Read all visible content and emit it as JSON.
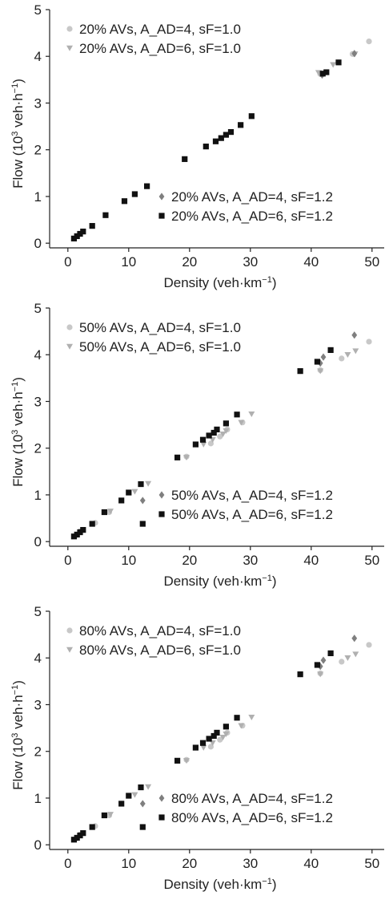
{
  "colors": {
    "c_ad4_sf10": "#c8c8c8",
    "c_ad6_sf10": "#b0b0b0",
    "c_ad4_sf12": "#7f7f7f",
    "c_ad6_sf12": "#111111",
    "axis": "#222222"
  },
  "chart_data": [
    {
      "type": "scatter",
      "xlabel": "Density (veh·km",
      "xlabel_sup": "−1",
      "xlabel_end": ")",
      "ylabel": "Flow (10",
      "ylabel_sup1": "3",
      "ylabel_mid": " veh·h",
      "ylabel_sup2": "−1",
      "ylabel_end": ")",
      "xlim": [
        -3,
        52
      ],
      "ylim": [
        -0.1,
        5
      ],
      "xticks": [
        "0",
        "10",
        "20",
        "30",
        "40",
        "50"
      ],
      "yticks": [
        "0",
        "1",
        "2",
        "3",
        "4",
        "5"
      ],
      "legend_top": "top-left",
      "legend_bottom": "bottom-right",
      "series": [
        {
          "name": "20% AVs, A_AD=4, sF=1.0",
          "marker": "circle",
          "color": "#c8c8c8",
          "points": [
            [
              41.5,
              3.62
            ],
            [
              46.8,
              4.05
            ],
            [
              49.5,
              4.32
            ]
          ]
        },
        {
          "name": "20% AVs, A_AD=6, sF=1.0",
          "marker": "triangle-down",
          "color": "#b0b0b0",
          "points": [
            [
              41.2,
              3.65
            ],
            [
              43.6,
              3.82
            ],
            [
              47.2,
              4.05
            ]
          ]
        },
        {
          "name": "20% AVs, A_AD=4, sF=1.2",
          "marker": "diamond",
          "color": "#7f7f7f",
          "points": [
            [
              41.8,
              3.6
            ],
            [
              47.1,
              4.06
            ]
          ]
        },
        {
          "name": "20% AVs, A_AD=6, sF=1.2",
          "marker": "square",
          "color": "#111111",
          "points": [
            [
              1.0,
              0.1
            ],
            [
              1.5,
              0.15
            ],
            [
              2.0,
              0.2
            ],
            [
              2.5,
              0.25
            ],
            [
              4.0,
              0.37
            ],
            [
              6.2,
              0.6
            ],
            [
              9.3,
              0.9
            ],
            [
              11.0,
              1.05
            ],
            [
              13.0,
              1.22
            ],
            [
              19.2,
              1.8
            ],
            [
              22.7,
              2.07
            ],
            [
              24.3,
              2.18
            ],
            [
              25.2,
              2.25
            ],
            [
              26.0,
              2.32
            ],
            [
              26.8,
              2.38
            ],
            [
              28.4,
              2.53
            ],
            [
              30.2,
              2.72
            ],
            [
              41.9,
              3.63
            ],
            [
              42.5,
              3.66
            ],
            [
              44.5,
              3.87
            ]
          ]
        }
      ]
    },
    {
      "type": "scatter",
      "xlabel": "Density (veh·km",
      "xlabel_sup": "−1",
      "xlabel_end": ")",
      "ylabel": "Flow (10",
      "ylabel_sup1": "3",
      "ylabel_mid": " veh·h",
      "ylabel_sup2": "−1",
      "ylabel_end": ")",
      "xlim": [
        -3,
        52
      ],
      "ylim": [
        -0.1,
        5
      ],
      "xticks": [
        "0",
        "10",
        "20",
        "30",
        "40",
        "50"
      ],
      "yticks": [
        "0",
        "1",
        "2",
        "3",
        "4",
        "5"
      ],
      "legend_top": "top-left",
      "legend_bottom": "bottom-right",
      "series": [
        {
          "name": "50% AVs, A_AD=4, sF=1.0",
          "marker": "circle",
          "color": "#c8c8c8",
          "points": [
            [
              1.2,
              0.12
            ],
            [
              4.5,
              0.4
            ],
            [
              6.8,
              0.63
            ],
            [
              19.5,
              1.82
            ],
            [
              23.5,
              2.1
            ],
            [
              25.0,
              2.25
            ],
            [
              26.2,
              2.4
            ],
            [
              28.7,
              2.55
            ],
            [
              38.2,
              3.65
            ],
            [
              41.5,
              3.67
            ],
            [
              45.0,
              3.92
            ],
            [
              49.5,
              4.28
            ]
          ]
        },
        {
          "name": "50% AVs, A_AD=6, sF=1.0",
          "marker": "triangle-down",
          "color": "#b0b0b0",
          "points": [
            [
              2.2,
              0.22
            ],
            [
              7.0,
              0.65
            ],
            [
              11.0,
              1.07
            ],
            [
              13.2,
              1.24
            ],
            [
              19.5,
              1.8
            ],
            [
              22.3,
              2.08
            ],
            [
              23.8,
              2.18
            ],
            [
              25.5,
              2.3
            ],
            [
              26.0,
              2.37
            ],
            [
              28.5,
              2.55
            ],
            [
              30.2,
              2.73
            ],
            [
              41.5,
              3.65
            ],
            [
              46.0,
              4.0
            ],
            [
              47.3,
              4.08
            ]
          ]
        },
        {
          "name": "50% AVs, A_AD=4, sF=1.2",
          "marker": "diamond",
          "color": "#7f7f7f",
          "points": [
            [
              12.3,
              0.88
            ],
            [
              41.5,
              3.82
            ],
            [
              42.0,
              3.95
            ],
            [
              47.1,
              4.42
            ]
          ]
        },
        {
          "name": "50% AVs, A_AD=6, sF=1.2",
          "marker": "square",
          "color": "#111111",
          "points": [
            [
              1.0,
              0.11
            ],
            [
              1.5,
              0.15
            ],
            [
              2.0,
              0.2
            ],
            [
              2.5,
              0.25
            ],
            [
              4.0,
              0.38
            ],
            [
              6.0,
              0.63
            ],
            [
              8.8,
              0.88
            ],
            [
              10.0,
              1.05
            ],
            [
              12.0,
              1.23
            ],
            [
              12.3,
              0.38
            ],
            [
              18.0,
              1.8
            ],
            [
              21.0,
              2.08
            ],
            [
              22.2,
              2.18
            ],
            [
              23.2,
              2.27
            ],
            [
              24.0,
              2.33
            ],
            [
              24.5,
              2.4
            ],
            [
              26.0,
              2.53
            ],
            [
              27.8,
              2.72
            ],
            [
              38.2,
              3.65
            ],
            [
              41.0,
              3.85
            ],
            [
              43.2,
              4.1
            ]
          ]
        }
      ]
    },
    {
      "type": "scatter",
      "xlabel": "Density (veh·km",
      "xlabel_sup": "−1",
      "xlabel_end": ")",
      "ylabel": "Flow (10",
      "ylabel_sup1": "3",
      "ylabel_mid": " veh·h",
      "ylabel_sup2": "−1",
      "ylabel_end": ")",
      "xlim": [
        -3,
        52
      ],
      "ylim": [
        -0.1,
        5
      ],
      "xticks": [
        "0",
        "10",
        "20",
        "30",
        "40",
        "50"
      ],
      "yticks": [
        "0",
        "1",
        "2",
        "3",
        "4",
        "5"
      ],
      "legend_top": "top-left",
      "legend_bottom": "bottom-right",
      "series": [
        {
          "name": "80% AVs, A_AD=4, sF=1.0",
          "marker": "circle",
          "color": "#c8c8c8",
          "points": [
            [
              1.2,
              0.12
            ],
            [
              4.5,
              0.4
            ],
            [
              6.8,
              0.63
            ],
            [
              19.5,
              1.82
            ],
            [
              23.5,
              2.1
            ],
            [
              25.0,
              2.25
            ],
            [
              26.2,
              2.4
            ],
            [
              28.7,
              2.55
            ],
            [
              38.2,
              3.65
            ],
            [
              41.5,
              3.67
            ],
            [
              45.0,
              3.92
            ],
            [
              49.5,
              4.28
            ]
          ]
        },
        {
          "name": "80% AVs, A_AD=6, sF=1.0",
          "marker": "triangle-down",
          "color": "#b0b0b0",
          "points": [
            [
              2.2,
              0.22
            ],
            [
              7.0,
              0.65
            ],
            [
              11.0,
              1.07
            ],
            [
              13.2,
              1.24
            ],
            [
              19.5,
              1.8
            ],
            [
              22.3,
              2.08
            ],
            [
              23.8,
              2.18
            ],
            [
              25.5,
              2.3
            ],
            [
              26.0,
              2.37
            ],
            [
              28.5,
              2.55
            ],
            [
              30.2,
              2.73
            ],
            [
              41.5,
              3.65
            ],
            [
              46.0,
              4.0
            ],
            [
              47.3,
              4.08
            ]
          ]
        },
        {
          "name": "80% AVs, A_AD=4, sF=1.2",
          "marker": "diamond",
          "color": "#7f7f7f",
          "points": [
            [
              12.3,
              0.88
            ],
            [
              41.5,
              3.82
            ],
            [
              42.0,
              3.95
            ],
            [
              47.1,
              4.42
            ]
          ]
        },
        {
          "name": "80% AVs, A_AD=6, sF=1.2",
          "marker": "square",
          "color": "#111111",
          "points": [
            [
              1.0,
              0.11
            ],
            [
              1.5,
              0.15
            ],
            [
              2.0,
              0.2
            ],
            [
              2.5,
              0.25
            ],
            [
              4.0,
              0.38
            ],
            [
              6.0,
              0.63
            ],
            [
              8.8,
              0.88
            ],
            [
              10.0,
              1.05
            ],
            [
              12.0,
              1.23
            ],
            [
              12.3,
              0.38
            ],
            [
              18.0,
              1.8
            ],
            [
              21.0,
              2.08
            ],
            [
              22.2,
              2.18
            ],
            [
              23.2,
              2.27
            ],
            [
              24.0,
              2.33
            ],
            [
              24.5,
              2.4
            ],
            [
              26.0,
              2.53
            ],
            [
              27.8,
              2.72
            ],
            [
              38.2,
              3.65
            ],
            [
              41.0,
              3.85
            ],
            [
              43.2,
              4.1
            ]
          ]
        }
      ]
    }
  ]
}
